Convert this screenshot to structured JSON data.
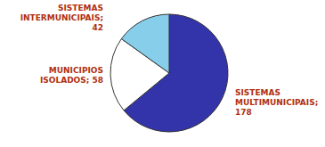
{
  "chart_data": {
    "type": "pie",
    "categories": [
      "SISTEMAS\nMULTIMUNICIPAIS;\n178",
      "MUNICIPIOS\nISOLADOS; 58",
      "SISTEMAS\nINTERMUNICIPAIS;\n42"
    ],
    "values": [
      178,
      58,
      42
    ],
    "colors": [
      "#3333AA",
      "#FFFFFF",
      "#87CEEB"
    ]
  }
}
